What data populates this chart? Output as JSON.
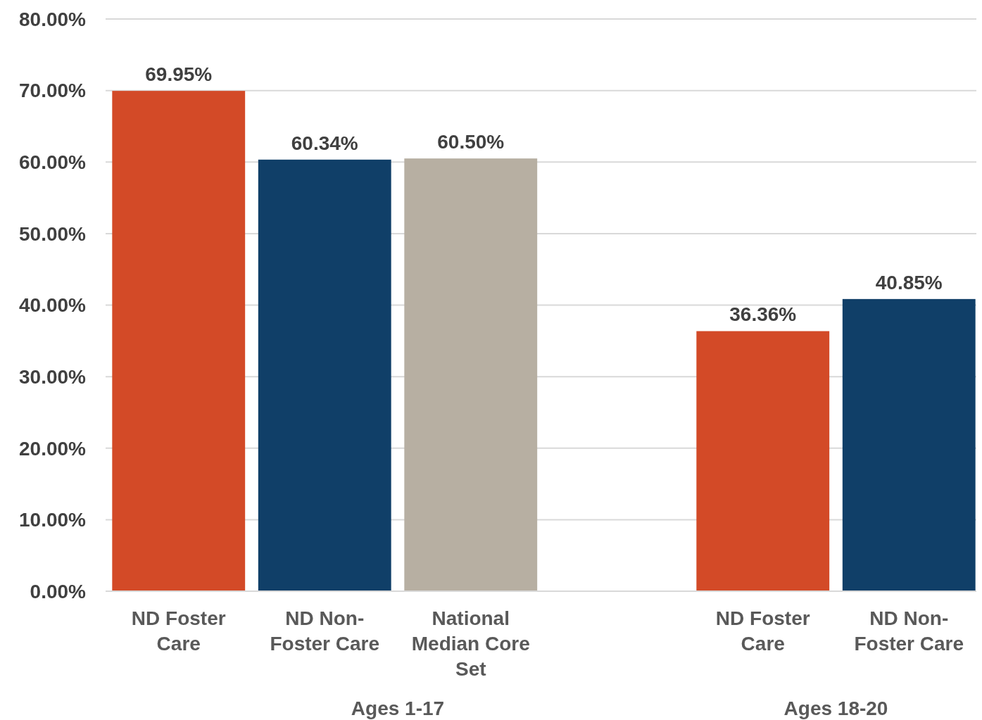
{
  "chart_data": {
    "type": "bar",
    "categories": [
      "ND Foster Care",
      "ND Non-Foster Care",
      "National Median Core Set",
      null,
      "ND Foster Care",
      "ND Non-Foster Care"
    ],
    "values": [
      69.95,
      60.34,
      60.5,
      null,
      36.36,
      40.85
    ],
    "colors": [
      "#d34a27",
      "#103f68",
      "#b7afa2",
      null,
      "#d34a27",
      "#103f68"
    ],
    "value_labels": [
      "69.95%",
      "60.34%",
      "60.50%",
      null,
      "36.36%",
      "40.85%"
    ],
    "ylim": [
      0,
      80
    ],
    "yticks": [
      {
        "value": 0,
        "label": "0.00%"
      },
      {
        "value": 10,
        "label": "10.00%"
      },
      {
        "value": 20,
        "label": "20.00%"
      },
      {
        "value": 30,
        "label": "30.00%"
      },
      {
        "value": 40,
        "label": "40.00%"
      },
      {
        "value": 50,
        "label": "50.00%"
      },
      {
        "value": 60,
        "label": "60.00%"
      },
      {
        "value": 70,
        "label": "70.00%"
      },
      {
        "value": 80,
        "label": "80.00%"
      }
    ],
    "grid": "y",
    "annotations": [
      "Ages 1-17",
      "Ages 18-20"
    ]
  }
}
